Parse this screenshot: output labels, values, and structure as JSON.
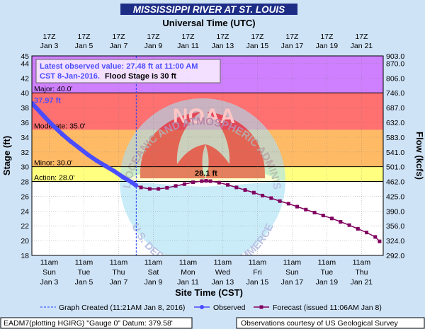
{
  "colors": {
    "banner_bg": "#1d2d86",
    "banner_text": "#ffffff",
    "frame_bg": "#cfe3f7",
    "major": "#cf80ff",
    "moderate": "#ff7070",
    "minor": "#ffba66",
    "action": "#ffff80",
    "normal": "#ffffff",
    "observed": "#4a4dff",
    "forecast": "#800060",
    "created_line": "#1a3fff",
    "logo_circle": "#a7e0f5",
    "logo_wings": "#d32c47",
    "logo_text": "#8c9ad2"
  },
  "title": "MISSISSIPPI RIVER AT ST. LOUIS",
  "utc_title": "Universal Time (UTC)",
  "cst_title": "Site Time (CST)",
  "top_ticks": [
    {
      "hour": "17Z",
      "date": "Jan 3"
    },
    {
      "hour": "17Z",
      "date": "Jan 5"
    },
    {
      "hour": "17Z",
      "date": "Jan 7"
    },
    {
      "hour": "17Z",
      "date": "Jan 9"
    },
    {
      "hour": "17Z",
      "date": "Jan 11"
    },
    {
      "hour": "17Z",
      "date": "Jan 13"
    },
    {
      "hour": "17Z",
      "date": "Jan 15"
    },
    {
      "hour": "17Z",
      "date": "Jan 17"
    },
    {
      "hour": "17Z",
      "date": "Jan 19"
    },
    {
      "hour": "17Z",
      "date": "Jan 21"
    }
  ],
  "bottom_ticks": [
    {
      "time": "11am",
      "day": "Sun",
      "date": "Jan 3"
    },
    {
      "time": "11am",
      "day": "Tue",
      "date": "Jan 5"
    },
    {
      "time": "11am",
      "day": "Thu",
      "date": "Jan 7"
    },
    {
      "time": "11am",
      "day": "Sat",
      "date": "Jan 9"
    },
    {
      "time": "11am",
      "day": "Mon",
      "date": "Jan 11"
    },
    {
      "time": "11am",
      "day": "Wed",
      "date": "Jan 13"
    },
    {
      "time": "11am",
      "day": "Fri",
      "date": "Jan 15"
    },
    {
      "time": "11am",
      "day": "Sun",
      "date": "Jan 17"
    },
    {
      "time": "11am",
      "day": "Tue",
      "date": "Jan 19"
    },
    {
      "time": "11am",
      "day": "Thu",
      "date": "Jan 21"
    }
  ],
  "info_box": {
    "line1": "Latest observed value: 27.48 ft at 11:00 AM",
    "line2_time": "CST 8-Jan-2016.",
    "line2_flood": "Flood Stage is 30 ft"
  },
  "legend": {
    "created": "Graph Created (11:21AM Jan 8, 2016)",
    "observed": "Observed",
    "forecast": "Forecast (issued 11:06AM Jan 8)"
  },
  "footer": {
    "left": "EADM7(plotting HGIRG) \"Gauge 0\" Datum: 379.58'",
    "right": "Observations courtesy of US Geological Survey"
  },
  "logo": {
    "arc_top": "NATIONAL OCEANIC AND ATMOSPHERIC ADMINISTRATION",
    "arc_bottom": "U.S. DEPARTMENT OF COMMERCE",
    "center": "NOAA"
  },
  "chart_data": {
    "type": "line",
    "title": "MISSISSIPPI RIVER AT ST. LOUIS",
    "xlabel": "Site Time (CST)",
    "x2label": "Universal Time (UTC)",
    "ylabel": "Stage (ft)",
    "y2label": "Flow (kcfs)",
    "x_range": [
      "2016-01-02T11:00",
      "2016-01-22T17:00"
    ],
    "x_ticks": [
      "2016-01-03T11:00",
      "2016-01-05T11:00",
      "2016-01-07T11:00",
      "2016-01-09T11:00",
      "2016-01-11T11:00",
      "2016-01-13T11:00",
      "2016-01-15T11:00",
      "2016-01-17T11:00",
      "2016-01-19T11:00",
      "2016-01-21T11:00"
    ],
    "ylim": [
      18,
      45
    ],
    "y_ticks": [
      18,
      20,
      22,
      24,
      26,
      28,
      30,
      32,
      34,
      36,
      38,
      40,
      42,
      44,
      45
    ],
    "y2_ticks": [
      {
        "stage": 18,
        "label": "292.0"
      },
      {
        "stage": 20,
        "label": "324.0"
      },
      {
        "stage": 22,
        "label": "356.0"
      },
      {
        "stage": 24,
        "label": "390.0"
      },
      {
        "stage": 26,
        "label": "425.0"
      },
      {
        "stage": 28,
        "label": "462.0"
      },
      {
        "stage": 30,
        "label": "501.0"
      },
      {
        "stage": 32,
        "label": "541.0"
      },
      {
        "stage": 34,
        "label": "583.0"
      },
      {
        "stage": 36,
        "label": "632.0"
      },
      {
        "stage": 38,
        "label": "687.0"
      },
      {
        "stage": 40,
        "label": "746.0"
      },
      {
        "stage": 42,
        "label": "806.0"
      },
      {
        "stage": 44,
        "label": "870.0"
      },
      {
        "stage": 45,
        "label": "903.0"
      }
    ],
    "grid": true,
    "flood_categories": [
      {
        "name": "Action",
        "label": "Action: 28.0'",
        "from": 28,
        "to": 30
      },
      {
        "name": "Minor",
        "label": "Minor: 30.0'",
        "from": 30,
        "to": 35
      },
      {
        "name": "Moderate",
        "label": "Moderate: 35.0'",
        "from": 35,
        "to": 40
      },
      {
        "name": "Major",
        "label": "Major: 40.0'",
        "from": 40,
        "to": 45
      }
    ],
    "graph_created": "2016-01-08T11:21",
    "annotations": [
      {
        "text": "37.97 ft",
        "x": "2016-01-02T17:00",
        "y": 37.97,
        "series": "observed"
      },
      {
        "text": "28.1 ft",
        "x": "2016-01-12T12:00",
        "y": 28.1,
        "series": "forecast"
      }
    ],
    "series": [
      {
        "name": "Observed",
        "style": "line-dots",
        "points": [
          [
            "2016-01-02T11:00",
            38.6
          ],
          [
            "2016-01-02T17:00",
            37.97
          ],
          [
            "2016-01-03T05:00",
            36.7
          ],
          [
            "2016-01-03T17:00",
            35.5
          ],
          [
            "2016-01-04T05:00",
            34.4
          ],
          [
            "2016-01-04T17:00",
            33.4
          ],
          [
            "2016-01-05T05:00",
            32.5
          ],
          [
            "2016-01-05T17:00",
            31.6
          ],
          [
            "2016-01-06T05:00",
            30.8
          ],
          [
            "2016-01-06T17:00",
            30.1
          ],
          [
            "2016-01-07T05:00",
            29.4
          ],
          [
            "2016-01-07T17:00",
            28.6
          ],
          [
            "2016-01-08T05:00",
            27.9
          ],
          [
            "2016-01-08T11:00",
            27.48
          ]
        ]
      },
      {
        "name": "Forecast",
        "style": "line-squares",
        "points": [
          [
            "2016-01-08T11:00",
            27.48
          ],
          [
            "2016-01-08T18:00",
            27.2
          ],
          [
            "2016-01-09T06:00",
            27.0
          ],
          [
            "2016-01-09T18:00",
            27.0
          ],
          [
            "2016-01-10T06:00",
            27.15
          ],
          [
            "2016-01-10T18:00",
            27.4
          ],
          [
            "2016-01-11T06:00",
            27.65
          ],
          [
            "2016-01-11T18:00",
            27.9
          ],
          [
            "2016-01-12T06:00",
            28.05
          ],
          [
            "2016-01-12T12:00",
            28.1
          ],
          [
            "2016-01-12T18:00",
            28.05
          ],
          [
            "2016-01-13T06:00",
            27.85
          ],
          [
            "2016-01-13T18:00",
            27.55
          ],
          [
            "2016-01-14T06:00",
            27.2
          ],
          [
            "2016-01-14T18:00",
            26.85
          ],
          [
            "2016-01-15T06:00",
            26.5
          ],
          [
            "2016-01-15T18:00",
            26.1
          ],
          [
            "2016-01-16T06:00",
            25.75
          ],
          [
            "2016-01-16T18:00",
            25.35
          ],
          [
            "2016-01-17T06:00",
            25.0
          ],
          [
            "2016-01-17T18:00",
            24.6
          ],
          [
            "2016-01-18T06:00",
            24.2
          ],
          [
            "2016-01-18T18:00",
            23.8
          ],
          [
            "2016-01-19T06:00",
            23.4
          ],
          [
            "2016-01-19T18:00",
            23.0
          ],
          [
            "2016-01-20T06:00",
            22.55
          ],
          [
            "2016-01-20T18:00",
            22.1
          ],
          [
            "2016-01-21T06:00",
            21.6
          ],
          [
            "2016-01-21T18:00",
            21.1
          ],
          [
            "2016-01-22T06:00",
            20.5
          ],
          [
            "2016-01-22T12:00",
            19.9
          ]
        ]
      }
    ]
  }
}
